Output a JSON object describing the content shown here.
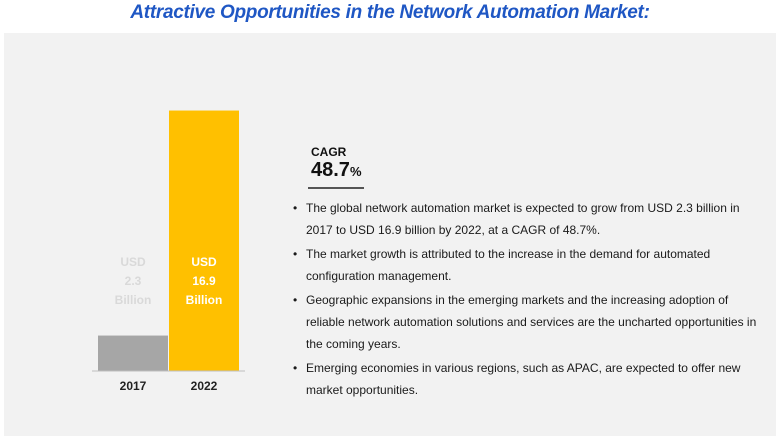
{
  "title": "Attractive Opportunities in the Network Automation Market:",
  "cagr": {
    "label": "CAGR",
    "value": "48.7",
    "unit": "%"
  },
  "bullets": [
    "The global network automation market is expected to grow from USD 2.3 billion in 2017 to USD 16.9 billion by 2022, at a CAGR of 48.7%.",
    "The market growth is attributed to the increase in the demand for automated configuration management.",
    "Geographic expansions in the emerging markets and the increasing adoption of reliable network automation solutions and services are the uncharted opportunities in the coming years.",
    "Emerging economies in various regions, such as APAC, are expected to offer new market opportunities."
  ],
  "colors": {
    "bar_2017": "#a6a6a6",
    "bar_2022": "#ffc000",
    "title": "#1f57c4",
    "panel": "#f2f2f2"
  },
  "chart_data": {
    "type": "bar",
    "title": "",
    "xlabel": "",
    "ylabel": "",
    "categories": [
      "2017",
      "2022"
    ],
    "values": [
      2.3,
      16.9
    ],
    "data_labels": [
      [
        "USD",
        "2.3",
        "Billion"
      ],
      [
        "USD",
        "16.9",
        "Billion"
      ]
    ],
    "ylim": [
      0,
      17
    ],
    "grid": false
  }
}
